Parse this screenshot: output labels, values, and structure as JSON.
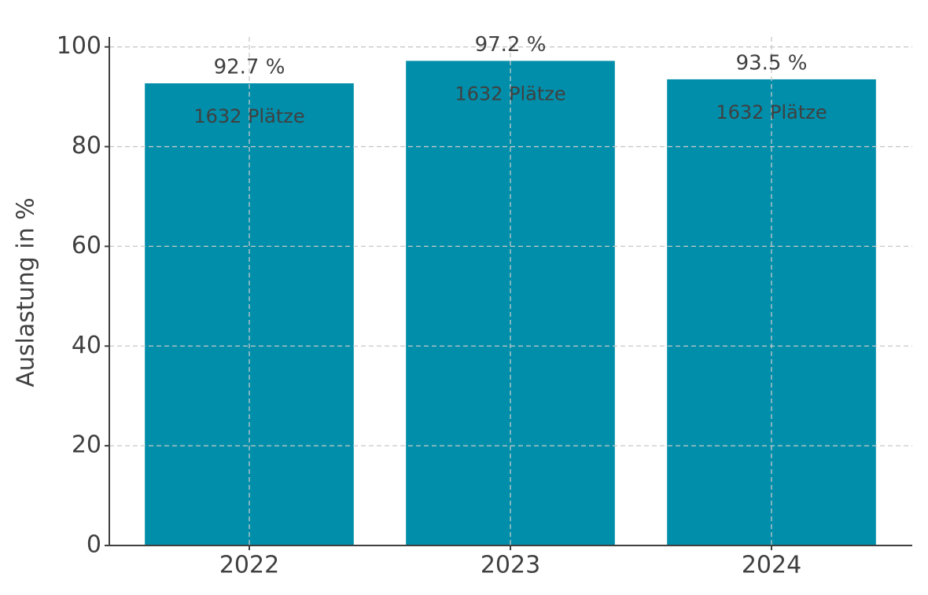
{
  "chart_data": {
    "type": "bar",
    "y_label": "Auslastung in %",
    "categories": [
      "2022",
      "2023",
      "2024"
    ],
    "values": [
      92.7,
      97.2,
      93.5
    ],
    "value_labels": [
      "92.7 %",
      "97.2 %",
      "93.5 %"
    ],
    "bar_annotations": [
      "1632 Plätze",
      "1632 Plätze",
      "1632 Plätze"
    ],
    "color": "#008eaa",
    "ylim": [
      0,
      102
    ],
    "yticks": [
      0,
      20,
      40,
      60,
      80,
      100
    ],
    "grid": true
  }
}
